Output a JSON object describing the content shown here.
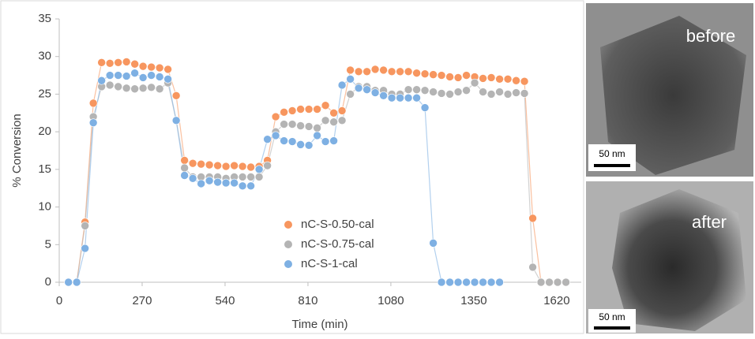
{
  "chart_data": {
    "type": "line",
    "x_label": "Time (min)",
    "y_label": "% Conversion",
    "xlim": [
      0,
      1700
    ],
    "xticks": [
      0,
      270,
      540,
      810,
      1080,
      1350,
      1620
    ],
    "ylim": [
      0,
      35
    ],
    "yticks": [
      0,
      5,
      10,
      15,
      20,
      25,
      30,
      35
    ],
    "grid": false,
    "legend": "lower center",
    "x": [
      30,
      57,
      84,
      111,
      138,
      165,
      192,
      219,
      246,
      273,
      300,
      327,
      354,
      381,
      408,
      435,
      462,
      489,
      516,
      543,
      570,
      597,
      624,
      651,
      678,
      705,
      732,
      759,
      786,
      813,
      840,
      867,
      894,
      921,
      948,
      975,
      1002,
      1029,
      1056,
      1083,
      1110,
      1137,
      1164,
      1191,
      1218,
      1245,
      1272,
      1299,
      1326,
      1353,
      1380,
      1407,
      1434,
      1461,
      1488,
      1515,
      1542,
      1569,
      1596,
      1623,
      1650
    ],
    "series": [
      {
        "name": "nC-S-0.50-cal",
        "color": "#f7965f",
        "values": [
          0,
          0,
          8,
          23.8,
          29.2,
          29.1,
          29.2,
          29.3,
          29,
          28.7,
          28.6,
          28.5,
          28.3,
          24.8,
          16.2,
          15.8,
          15.7,
          15.6,
          15.5,
          15.4,
          15.5,
          15.4,
          15.3,
          15.4,
          16.2,
          22,
          22.6,
          22.8,
          23,
          23,
          23,
          23.5,
          22.5,
          22.8,
          28.2,
          28,
          28,
          28.3,
          28.2,
          28,
          28,
          28,
          27.8,
          27.7,
          27.6,
          27.5,
          27.3,
          27.2,
          27.5,
          27.3,
          27.1,
          27.2,
          27,
          27,
          26.8,
          26.7,
          8.5,
          0,
          0,
          0,
          0
        ]
      },
      {
        "name": "nC-S-0.75-cal",
        "color": "#b4b4b4",
        "values": [
          0,
          0,
          7.5,
          22,
          26,
          26.2,
          26,
          25.8,
          25.7,
          25.8,
          25.9,
          25.7,
          26.5,
          21.5,
          15.2,
          14,
          14,
          14,
          14,
          13.8,
          14,
          14,
          14,
          14,
          15.5,
          20,
          21,
          21,
          20.8,
          20.7,
          20.5,
          21.5,
          21.3,
          21.5,
          25,
          26,
          26,
          25.5,
          25.5,
          25,
          25,
          25.6,
          25.6,
          25.5,
          25.3,
          25.1,
          25,
          25.3,
          25.5,
          26.5,
          25.3,
          25,
          25.3,
          25,
          25.2,
          25.1,
          2,
          0,
          0,
          0,
          0
        ]
      },
      {
        "name": "nC-S-1-cal",
        "color": "#7eb0e3",
        "values": [
          0,
          0,
          4.5,
          21.2,
          26.8,
          27.5,
          27.5,
          27.4,
          27.8,
          27.2,
          27.5,
          27.3,
          27,
          21.5,
          14.2,
          13.8,
          13.1,
          13.5,
          13.3,
          13.2,
          13.2,
          12.8,
          12.8,
          15,
          19,
          19.5,
          18.8,
          18.7,
          18.3,
          18.2,
          19.5,
          18.7,
          18.8,
          26.2,
          27,
          25.8,
          25.6,
          25.2,
          24.8,
          24.5,
          24.5,
          24.5,
          24.5,
          23.2,
          5.2,
          0,
          0,
          0,
          0,
          0,
          0,
          0,
          0,
          null,
          null,
          null,
          null,
          null,
          null,
          null,
          null
        ]
      }
    ]
  },
  "images": {
    "before": {
      "label": "before",
      "scale": "50 nm"
    },
    "after": {
      "label": "after",
      "scale": "50 nm"
    }
  }
}
